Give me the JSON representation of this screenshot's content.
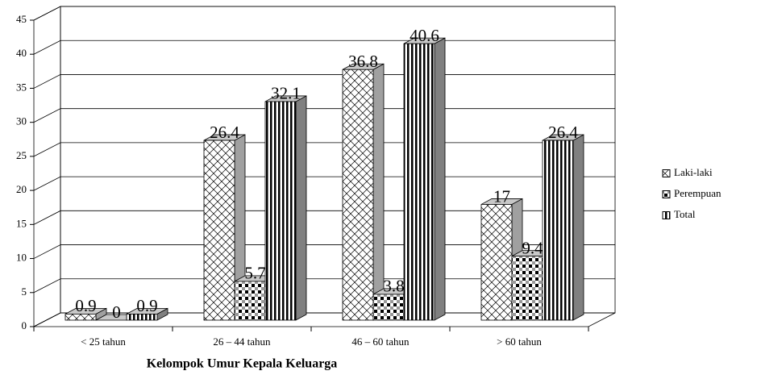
{
  "chart_data": {
    "type": "bar3d",
    "xlabel": "Kelompok Umur Kepala Keluarga",
    "categories": [
      "< 25 tahun",
      "26 – 44 tahun",
      "46 – 60 tahun",
      "> 60 tahun"
    ],
    "series": [
      {
        "name": "Laki-laki",
        "color": "#a0a0a0",
        "values": [
          0.9,
          26.4,
          36.8,
          17
        ]
      },
      {
        "name": "Perempuan",
        "color": "#6e6e6e",
        "values": [
          0,
          5.7,
          3.8,
          9.4
        ]
      },
      {
        "name": "Total",
        "color": "#808080",
        "values": [
          0.9,
          32.1,
          40.6,
          26.4
        ]
      }
    ],
    "ylim": [
      0,
      45
    ],
    "yticks": [
      0,
      5,
      10,
      15,
      20,
      25,
      30,
      35,
      40,
      45
    ],
    "grid": true,
    "legend": "right"
  }
}
